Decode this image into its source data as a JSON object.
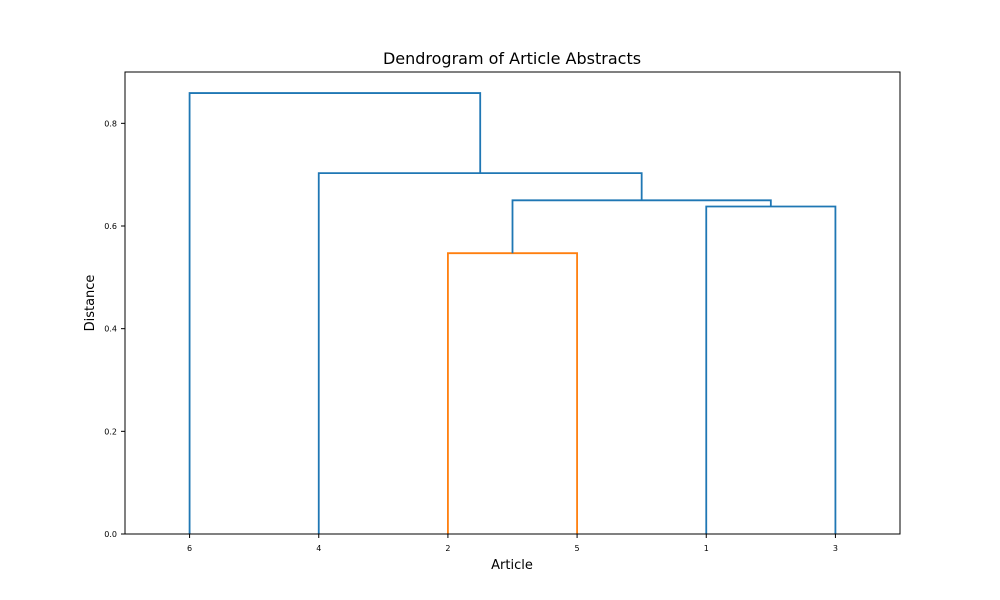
{
  "chart_data": {
    "type": "dendrogram",
    "title": "Dendrogram of Article Abstracts",
    "xlabel": "Article",
    "ylabel": "Distance",
    "ylim": [
      0,
      0.9
    ],
    "yticks": [
      "0.0",
      "0.2",
      "0.4",
      "0.6",
      "0.8"
    ],
    "leaves": [
      "6",
      "4",
      "2",
      "5",
      "1",
      "3"
    ],
    "merges": [
      {
        "left": "2",
        "right": "5",
        "distance": 0.547,
        "color": "#ff7f0e"
      },
      {
        "left": "1",
        "right": "3",
        "distance": 0.638,
        "color": "#1f77b4"
      },
      {
        "left": "(2,5)",
        "right": "(1,3)",
        "distance": 0.65,
        "color": "#1f77b4"
      },
      {
        "left": "4",
        "right": "((2,5),(1,3))",
        "distance": 0.703,
        "color": "#1f77b4"
      },
      {
        "left": "6",
        "right": "(4,((2,5),(1,3)))",
        "distance": 0.859,
        "color": "#1f77b4"
      }
    ]
  }
}
